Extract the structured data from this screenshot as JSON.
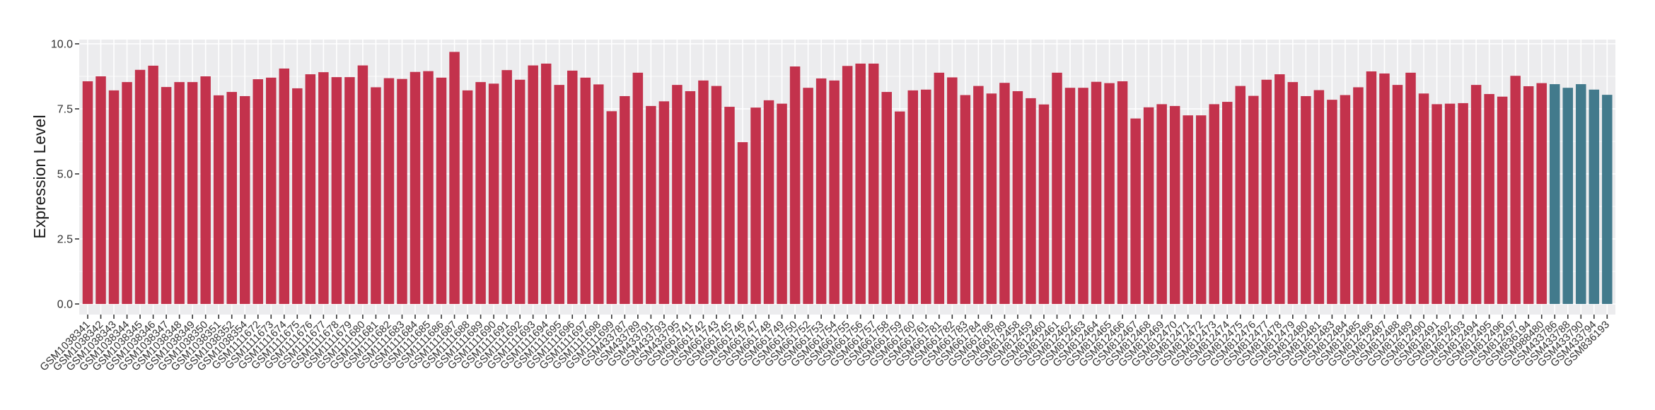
{
  "chart_data": {
    "type": "bar",
    "title": "",
    "xlabel": "",
    "ylabel": "Expression Level",
    "ylim": [
      0,
      10
    ],
    "yticks": [
      0,
      2.5,
      5,
      7.5,
      10
    ],
    "ytick_labels": [
      "0.0",
      "2.5",
      "5.0",
      "7.5",
      "10.0"
    ],
    "yminor_ticks": [
      1.25,
      3.75,
      6.25,
      8.75
    ],
    "grid": "on",
    "legend": "none",
    "panel_bg": "#ECECEE",
    "grid_color": "#FFFFFF",
    "axis_text_color": "#303030",
    "tick_color": "#333333",
    "bar_color_default": "#C3324C",
    "bar_color_highlight": "#427A8C",
    "highlight_samples": [
      "GSM433786",
      "GSM433788",
      "GSM433790",
      "GSM433794",
      "GSM836193"
    ],
    "categories": [
      "GSM1038341",
      "GSM1038342",
      "GSM1038343",
      "GSM1038344",
      "GSM1038345",
      "GSM1038346",
      "GSM1038347",
      "GSM1038348",
      "GSM1038349",
      "GSM1038350",
      "GSM1038351",
      "GSM1038352",
      "GSM1038354",
      "GSM1111672",
      "GSM1111673",
      "GSM1111674",
      "GSM1111675",
      "GSM1111676",
      "GSM1111677",
      "GSM1111678",
      "GSM1111679",
      "GSM1111680",
      "GSM1111681",
      "GSM1111682",
      "GSM1111683",
      "GSM1111684",
      "GSM1111685",
      "GSM1111686",
      "GSM1111687",
      "GSM1111688",
      "GSM1111689",
      "GSM1111690",
      "GSM1111691",
      "GSM1111692",
      "GSM1111693",
      "GSM1111694",
      "GSM1111695",
      "GSM1111696",
      "GSM1111697",
      "GSM1111698",
      "GSM1111699",
      "GSM433787",
      "GSM433789",
      "GSM433791",
      "GSM433793",
      "GSM433795",
      "GSM661741",
      "GSM661742",
      "GSM661743",
      "GSM661745",
      "GSM661746",
      "GSM661747",
      "GSM661748",
      "GSM661749",
      "GSM661750",
      "GSM661752",
      "GSM661753",
      "GSM661754",
      "GSM661755",
      "GSM661756",
      "GSM661757",
      "GSM661758",
      "GSM661759",
      "GSM661760",
      "GSM661761",
      "GSM661781",
      "GSM661782",
      "GSM661783",
      "GSM661784",
      "GSM661786",
      "GSM661789",
      "GSM812458",
      "GSM812459",
      "GSM812460",
      "GSM812461",
      "GSM812462",
      "GSM812463",
      "GSM812464",
      "GSM812465",
      "GSM812466",
      "GSM812467",
      "GSM812468",
      "GSM812469",
      "GSM812470",
      "GSM812471",
      "GSM812472",
      "GSM812473",
      "GSM812474",
      "GSM812475",
      "GSM812476",
      "GSM812477",
      "GSM812478",
      "GSM812479",
      "GSM812480",
      "GSM812481",
      "GSM812483",
      "GSM812484",
      "GSM812485",
      "GSM812486",
      "GSM812487",
      "GSM812488",
      "GSM812489",
      "GSM812490",
      "GSM812491",
      "GSM812492",
      "GSM812493",
      "GSM812494",
      "GSM812495",
      "GSM812496",
      "GSM812497",
      "GSM836194",
      "GSM988480",
      "GSM433786",
      "GSM433788",
      "GSM433790",
      "GSM433794",
      "GSM836193"
    ],
    "values": [
      8.56,
      8.75,
      8.21,
      8.53,
      9.0,
      9.16,
      8.34,
      8.53,
      8.53,
      8.75,
      8.02,
      8.15,
      7.99,
      8.64,
      8.7,
      9.05,
      8.29,
      8.83,
      8.91,
      8.72,
      8.72,
      9.17,
      8.33,
      8.68,
      8.65,
      8.92,
      8.95,
      8.7,
      9.69,
      8.21,
      8.53,
      8.47,
      8.99,
      8.62,
      9.17,
      9.24,
      8.42,
      8.97,
      8.7,
      8.44,
      7.41,
      7.99,
      8.89,
      7.61,
      7.79,
      8.42,
      8.18,
      8.59,
      8.38,
      7.58,
      6.22,
      7.55,
      7.83,
      7.7,
      9.13,
      8.31,
      8.67,
      8.59,
      9.15,
      9.24,
      9.24,
      8.15,
      7.4,
      8.21,
      8.24,
      8.89,
      8.71,
      8.03,
      8.38,
      8.09,
      8.5,
      8.18,
      7.91,
      7.67,
      8.89,
      8.31,
      8.31,
      8.54,
      8.49,
      8.56,
      7.13,
      7.56,
      7.68,
      7.61,
      7.25,
      7.25,
      7.68,
      7.77,
      8.38,
      8.0,
      8.62,
      8.83,
      8.53,
      7.99,
      8.22,
      7.85,
      8.03,
      8.33,
      8.94,
      8.86,
      8.42,
      8.89,
      8.09,
      7.68,
      7.7,
      7.72,
      8.42,
      8.07,
      7.97,
      8.77,
      8.37,
      8.49,
      8.45,
      8.31,
      8.45,
      8.24,
      8.04
    ]
  }
}
